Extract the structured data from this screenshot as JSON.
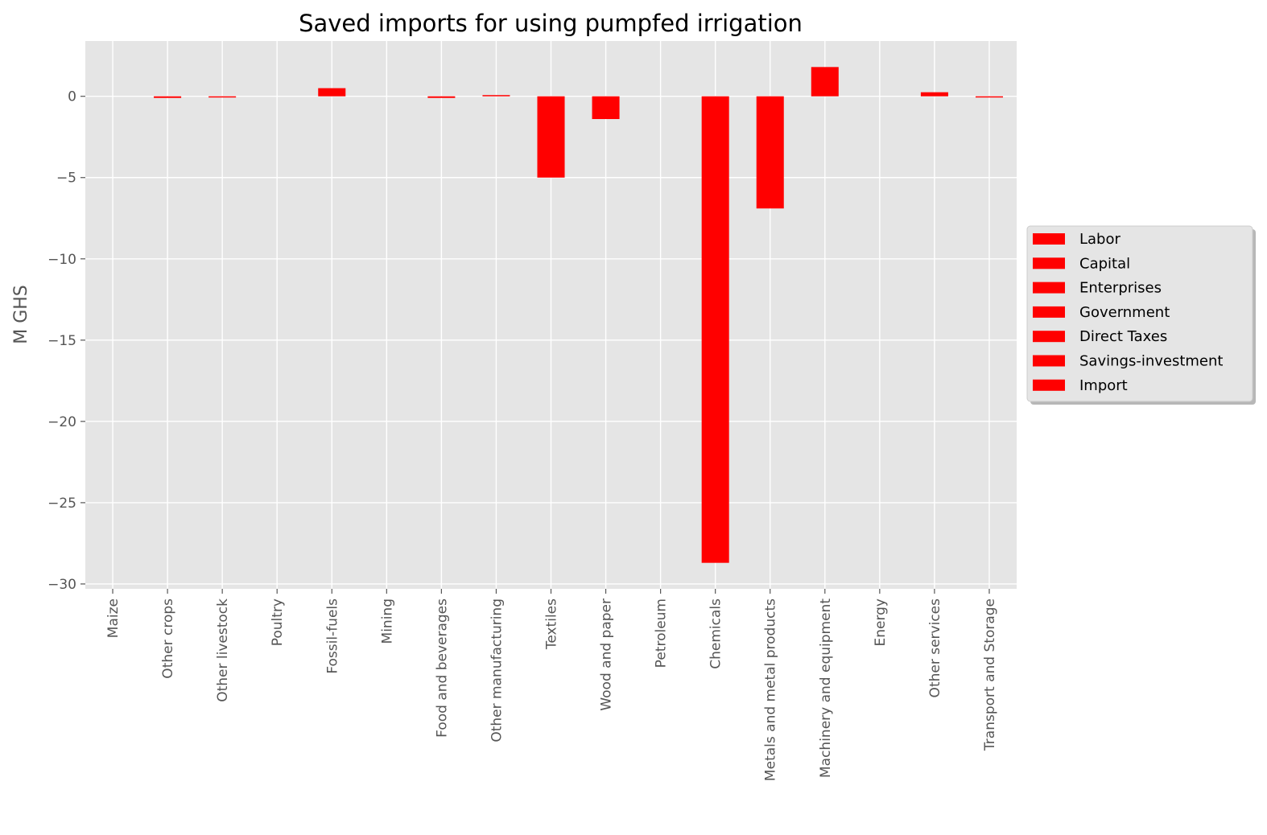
{
  "chart_data": {
    "type": "bar",
    "title": "Saved imports for using pumpfed irrigation",
    "xlabel": "",
    "ylabel": "M GHS",
    "ylim": [
      -30.3,
      3.4
    ],
    "yticks": [
      0,
      -5,
      -10,
      -15,
      -20,
      -25,
      -30
    ],
    "ytick_labels": [
      "0",
      "−5",
      "−10",
      "−15",
      "−20",
      "−25",
      "−30"
    ],
    "grid": true,
    "legend_position": "center-right, outside plot",
    "categories": [
      "Maize",
      "Other crops",
      "Other livestock",
      "Poultry",
      "Fossil-fuels",
      "Mining",
      "Food and beverages",
      "Other manufacturing",
      "Textiles",
      "Wood and paper",
      "Petroleum",
      "Chemicals",
      "Metals and metal products",
      "Machinery and equipment",
      "Energy",
      "Other services",
      "Transport and Storage"
    ],
    "values": [
      0.0,
      -0.1,
      -0.05,
      0.0,
      0.5,
      0.0,
      -0.1,
      0.05,
      -5.0,
      -1.4,
      0.0,
      -28.7,
      -6.9,
      1.8,
      0.0,
      0.25,
      -0.05
    ],
    "legend": [
      "Labor",
      "Capital",
      "Enterprises",
      "Government",
      "Direct Taxes",
      "Savings-investment",
      "Import"
    ],
    "colors": {
      "bar": "#ff0000",
      "plot_bg": "#e5e5e5",
      "grid": "#ffffff",
      "tick_text": "#555555"
    }
  }
}
